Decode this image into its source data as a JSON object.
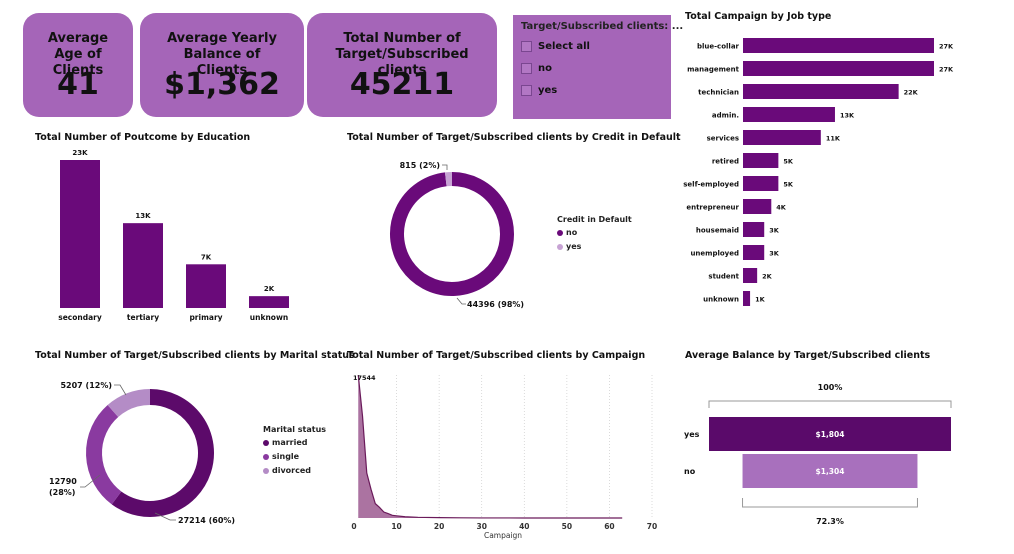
{
  "kpis": [
    {
      "title": "Average Age of Clients",
      "value": "41"
    },
    {
      "title": "Average Yearly Balance of Clients",
      "value": "$1,362"
    },
    {
      "title": "Total Number of Target/Subscribed clients",
      "value": "45211"
    }
  ],
  "slicer": {
    "title": "Target/Subscribed clients: ...",
    "options": [
      "Select all",
      "no",
      "yes"
    ]
  },
  "colors": {
    "dark": "#6a0a7a",
    "mid": "#8a3aa0",
    "light": "#b98fc8",
    "card": "#a565b8"
  },
  "chart_data": [
    {
      "id": "education",
      "type": "bar",
      "title": "Total Number of Poutcome by Education",
      "categories": [
        "secondary",
        "tertiary",
        "primary",
        "unknown"
      ],
      "values": [
        23202,
        13301,
        6851,
        1857
      ],
      "labels": [
        "23K",
        "13K",
        "7K",
        "2K"
      ]
    },
    {
      "id": "credit",
      "type": "pie",
      "title": "Total Number of Target/Subscribed clients by Credit in Default",
      "legend_title": "Credit in Default",
      "categories": [
        "no",
        "yes"
      ],
      "values": [
        44396,
        815
      ],
      "labels": [
        "44396 (98%)",
        "815 (2%)"
      ]
    },
    {
      "id": "job",
      "type": "bar",
      "orientation": "horizontal",
      "title": "Total Campaign by Job type",
      "categories": [
        "blue-collar",
        "management",
        "technician",
        "admin.",
        "services",
        "retired",
        "self-employed",
        "entrepreneur",
        "housemaid",
        "unemployed",
        "student",
        "unknown"
      ],
      "values": [
        27000,
        27000,
        22000,
        13000,
        11000,
        5000,
        5000,
        4000,
        3000,
        3000,
        2000,
        1000
      ],
      "labels": [
        "27K",
        "27K",
        "22K",
        "13K",
        "11K",
        "5K",
        "5K",
        "4K",
        "3K",
        "3K",
        "2K",
        "1K"
      ]
    },
    {
      "id": "marital",
      "type": "pie",
      "title": "Total Number of Target/Subscribed clients by Marital status",
      "legend_title": "Marital status",
      "categories": [
        "married",
        "single",
        "divorced"
      ],
      "values": [
        27214,
        12790,
        5207
      ],
      "labels": [
        "27214 (60%)",
        "12790 (28%)",
        "5207 (12%)"
      ]
    },
    {
      "id": "campaign",
      "type": "area",
      "title": "Total Number of Target/Subscribed clients by Campaign",
      "xlabel": "Campaign",
      "xlim": [
        0,
        70
      ],
      "xticks": [
        0,
        10,
        20,
        30,
        40,
        50,
        60,
        70
      ],
      "x": [
        1,
        2,
        3,
        4,
        5,
        6,
        7,
        8,
        9,
        10,
        12,
        15,
        20,
        25,
        30,
        40,
        50,
        63
      ],
      "y": [
        17544,
        12505,
        5521,
        3522,
        1764,
        1291,
        735,
        540,
        327,
        266,
        155,
        84,
        43,
        22,
        8,
        3,
        1,
        1
      ],
      "peak_label": "17544"
    },
    {
      "id": "balance",
      "type": "bar",
      "orientation": "horizontal",
      "title": "Average Balance by Target/Subscribed clients",
      "categories": [
        "yes",
        "no"
      ],
      "values": [
        1804,
        1304
      ],
      "labels": [
        "$1,804",
        "$1,304"
      ],
      "top_label": "100%",
      "bottom_label": "72.3%"
    }
  ]
}
